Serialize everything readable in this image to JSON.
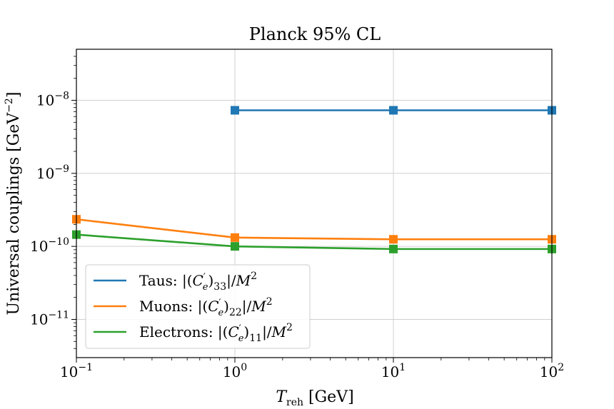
{
  "chart_data": {
    "type": "line",
    "title": "Planck 95% CL",
    "xlabel": "T_reh [GeV]",
    "ylabel": "Universal couplings [GeV^-2]",
    "x_scale": "log",
    "y_scale": "log",
    "xlim": [
      0.1,
      100
    ],
    "ylim": [
      3e-12,
      5e-08
    ],
    "grid": true,
    "legend_position": "lower-left",
    "x_ticks": [
      {
        "value": 0.1,
        "base": "10",
        "exp": "−1"
      },
      {
        "value": 1,
        "base": "10",
        "exp": "0"
      },
      {
        "value": 10,
        "base": "10",
        "exp": "1"
      },
      {
        "value": 100,
        "base": "10",
        "exp": "2"
      }
    ],
    "y_ticks": [
      {
        "value": 1e-11,
        "base": "10",
        "exp": "−11"
      },
      {
        "value": 1e-10,
        "base": "10",
        "exp": "−10"
      },
      {
        "value": 1e-09,
        "base": "10",
        "exp": "−9"
      },
      {
        "value": 1e-08,
        "base": "10",
        "exp": "−8"
      }
    ],
    "series": [
      {
        "name": "Taus: |(C'_e)_33|/M^2",
        "legend_prefix": "Taus:",
        "subscript": "33",
        "color": "#1f77b4",
        "x": [
          1,
          10,
          100
        ],
        "values": [
          7.3e-09,
          7.3e-09,
          7.3e-09
        ]
      },
      {
        "name": "Muons: |(C'_e)_22|/M^2",
        "legend_prefix": "Muons:",
        "subscript": "22",
        "color": "#ff7f0e",
        "x": [
          0.1,
          1,
          10,
          100
        ],
        "values": [
          2.35e-10,
          1.32e-10,
          1.25e-10,
          1.25e-10
        ]
      },
      {
        "name": "Electrons: |(C'_e)_11|/M^2",
        "legend_prefix": "Electrons:",
        "subscript": "11",
        "color": "#2ca02c",
        "x": [
          0.1,
          1,
          10,
          100
        ],
        "values": [
          1.45e-10,
          1e-10,
          9.2e-11,
          9.2e-11
        ]
      }
    ]
  }
}
